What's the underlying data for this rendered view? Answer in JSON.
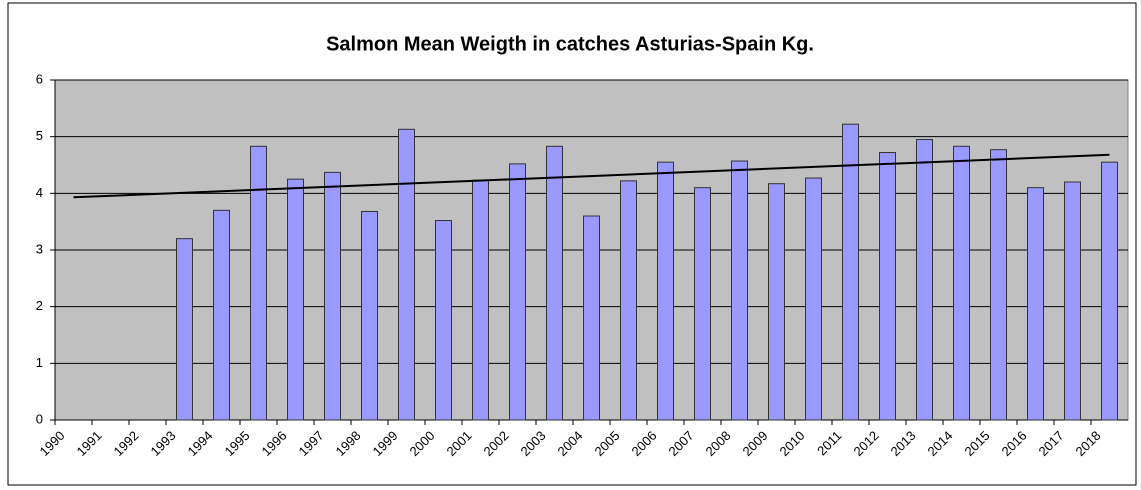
{
  "chart_data": {
    "type": "bar",
    "title": "Salmon Mean Weigth in catches Asturias-Spain  Kg.",
    "categories": [
      "1990",
      "1991",
      "1992",
      "1993",
      "1994",
      "1995",
      "1996",
      "1997",
      "1998",
      "1999",
      "2000",
      "2001",
      "2002",
      "2003",
      "2004",
      "2005",
      "2006",
      "2007",
      "2008",
      "2009",
      "2010",
      "2011",
      "2012",
      "2013",
      "2014",
      "2015",
      "2016",
      "2017",
      "2018"
    ],
    "values": [
      null,
      null,
      null,
      3.2,
      3.7,
      4.83,
      4.25,
      4.37,
      3.68,
      5.13,
      3.52,
      4.23,
      4.52,
      4.83,
      3.6,
      4.22,
      4.55,
      4.1,
      4.57,
      4.17,
      4.27,
      5.22,
      4.72,
      4.95,
      4.83,
      4.77,
      4.1,
      4.2,
      4.55
    ],
    "color": "#9999ff",
    "trendline": {
      "values": [
        3.93,
        4.68
      ],
      "color": "#000000"
    },
    "ylim": [
      0,
      6
    ],
    "yticks": [
      0,
      1,
      2,
      3,
      4,
      5,
      6
    ],
    "grid": true
  }
}
